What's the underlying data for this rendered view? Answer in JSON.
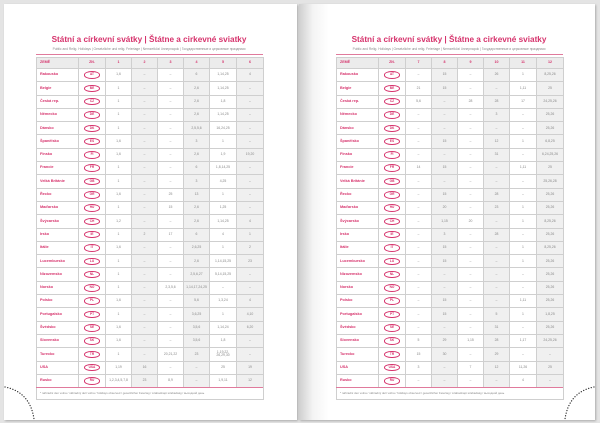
{
  "title": "Státní a církevní svátky | Štátne a cirkevné sviatky",
  "subtitle": "Public and Relig. Holidays | Gesetzliche und relig. Feiertage | Nemzetközi ünnepnapok | Государственные и церковные праздники",
  "footnote": "* náhradní den volna / náhradný deň voľna / holidays observed / gesetzlicher Feiertag / szabadnapi szabadság / выходной день",
  "accent_color": "#d6336c",
  "headers": {
    "country": "ZEMĚ",
    "code": "ZN."
  },
  "left_months": [
    "1",
    "2",
    "3",
    "4",
    "5",
    "6"
  ],
  "right_months": [
    "7",
    "8",
    "9",
    "10",
    "11",
    "12"
  ],
  "countries": [
    {
      "name": "Rakousko",
      "code": "AT",
      "left": [
        "1,6",
        "–",
        "–",
        "6",
        "1,14,25",
        "4"
      ],
      "right": [
        "–",
        "15",
        "–",
        "26",
        "1",
        "8,25,26"
      ]
    },
    {
      "name": "Belgie",
      "code": "BE",
      "left": [
        "1",
        "–",
        "–",
        "2,6",
        "1,14,25",
        "–"
      ],
      "right": [
        "21",
        "15",
        "–",
        "–",
        "1,11",
        "25"
      ]
    },
    {
      "name": "Česká rep.",
      "code": "CZ",
      "left": [
        "1",
        "–",
        "–",
        "2,6",
        "1,8",
        "–"
      ],
      "right": [
        "5,6",
        "–",
        "28",
        "28",
        "17",
        "24,25,26"
      ]
    },
    {
      "name": "Německo",
      "code": "DE",
      "left": [
        "1",
        "–",
        "–",
        "2,6",
        "1,14,25",
        "–"
      ],
      "right": [
        "–",
        "–",
        "–",
        "3",
        "–",
        "25,26"
      ]
    },
    {
      "name": "Dánsko",
      "code": "DK",
      "left": [
        "1",
        "–",
        "–",
        "2,5,5,6",
        "16,24,25",
        "–"
      ],
      "right": [
        "–",
        "–",
        "–",
        "–",
        "–",
        "25,26"
      ]
    },
    {
      "name": "Španělsko",
      "code": "ES",
      "left": [
        "1,6",
        "–",
        "–",
        "3",
        "1",
        "–"
      ],
      "right": [
        "–",
        "15",
        "–",
        "12",
        "1",
        "6,8,25"
      ]
    },
    {
      "name": "Finsko",
      "code": "FI",
      "left": [
        "1,6",
        "–",
        "–",
        "2,6",
        "1,9",
        "19,20"
      ],
      "right": [
        "–",
        "–",
        "–",
        "31",
        "–",
        "6,24,25,26"
      ]
    },
    {
      "name": "Francie",
      "code": "FR",
      "left": [
        "1",
        "–",
        "–",
        "6",
        "1,8,14,25",
        "–"
      ],
      "right": [
        "14",
        "15",
        "–",
        "–",
        "1,11",
        "25"
      ]
    },
    {
      "name": "Velká Británie",
      "code": "GB",
      "left": [
        "1",
        "–",
        "–",
        "3",
        "4,25",
        "–"
      ],
      "right": [
        "–",
        "–",
        "–",
        "–",
        "–",
        "25,26,28"
      ]
    },
    {
      "name": "Řecko",
      "code": "GR",
      "left": [
        "1,6",
        "–",
        "25",
        "13",
        "1",
        "–"
      ],
      "right": [
        "–",
        "15",
        "–",
        "28",
        "–",
        "25,26"
      ]
    },
    {
      "name": "Maďarsko",
      "code": "HU",
      "left": [
        "1",
        "–",
        "15",
        "2,6",
        "1,25",
        "–"
      ],
      "right": [
        "–",
        "20",
        "–",
        "23",
        "1",
        "25,26"
      ]
    },
    {
      "name": "Švýcarsko",
      "code": "CH",
      "left": [
        "1,2",
        "–",
        "–",
        "2,6",
        "1,14,25",
        "4"
      ],
      "right": [
        "–",
        "1,15",
        "20",
        "–",
        "1",
        "8,25,26"
      ]
    },
    {
      "name": "Irsko",
      "code": "IE",
      "left": [
        "1",
        "2",
        "17",
        "6",
        "4",
        "1"
      ],
      "right": [
        "–",
        "3",
        "–",
        "28",
        "–",
        "25,26"
      ]
    },
    {
      "name": "Itálie",
      "code": "IT",
      "left": [
        "1,6",
        "–",
        "–",
        "2,6,25",
        "1",
        "2"
      ],
      "right": [
        "–",
        "15",
        "–",
        "–",
        "1",
        "8,25,26"
      ]
    },
    {
      "name": "Lucembursko",
      "code": "LU",
      "left": [
        "1",
        "–",
        "–",
        "2,6",
        "1,14,15,25",
        "23"
      ],
      "right": [
        "–",
        "15",
        "–",
        "–",
        "1",
        "25,26"
      ]
    },
    {
      "name": "Nizozemsko",
      "code": "NL",
      "left": [
        "1",
        "–",
        "–",
        "2,5,6,27",
        "5,14,15,25",
        "–"
      ],
      "right": [
        "–",
        "–",
        "–",
        "–",
        "–",
        "25,26"
      ]
    },
    {
      "name": "Norsko",
      "code": "NO",
      "left": [
        "1",
        "–",
        "2,3,5,6",
        "1,14,17,24,25",
        "–",
        "–"
      ],
      "right": [
        "–",
        "–",
        "–",
        "–",
        "–",
        "25,26"
      ]
    },
    {
      "name": "Polsko",
      "code": "PL",
      "left": [
        "1,6",
        "–",
        "–",
        "5,6",
        "1,3,24",
        "4"
      ],
      "right": [
        "–",
        "15",
        "–",
        "–",
        "1,11",
        "25,26"
      ]
    },
    {
      "name": "Portugalsko",
      "code": "PT",
      "left": [
        "1",
        "–",
        "–",
        "3,6,25",
        "1",
        "4,10"
      ],
      "right": [
        "–",
        "15",
        "–",
        "5",
        "1",
        "1,8,25"
      ]
    },
    {
      "name": "Švédsko",
      "code": "SE",
      "left": [
        "1,6",
        "–",
        "–",
        "3,5,6",
        "1,14,24",
        "6,20"
      ],
      "right": [
        "–",
        "–",
        "–",
        "31",
        "–",
        "25,26"
      ]
    },
    {
      "name": "Slovensko",
      "code": "SK",
      "left": [
        "1,6",
        "–",
        "–",
        "3,5,6",
        "1,8",
        "–"
      ],
      "right": [
        "5",
        "29",
        "1,15",
        "28",
        "1,17",
        "24,25,26"
      ]
    },
    {
      "name": "Turecko",
      "code": "TR",
      "left": [
        "1",
        "–",
        "20,21,22",
        "23",
        "1,19,22, 26,29,30",
        "–"
      ],
      "right": [
        "15",
        "30",
        "–",
        "29",
        "–",
        "–"
      ]
    },
    {
      "name": "USA",
      "code": "USA",
      "left": [
        "1,19",
        "16",
        "–",
        "–",
        "25",
        "19"
      ],
      "right": [
        "3",
        "–",
        "7",
        "12",
        "11,26",
        "25"
      ]
    },
    {
      "name": "Rusko",
      "code": "RU",
      "left": [
        "1,2,3,4,5,7,8",
        "23",
        "8,9",
        "–",
        "1,9,11",
        "12"
      ],
      "right": [
        "–",
        "–",
        "–",
        "–",
        "4",
        "–"
      ]
    }
  ]
}
